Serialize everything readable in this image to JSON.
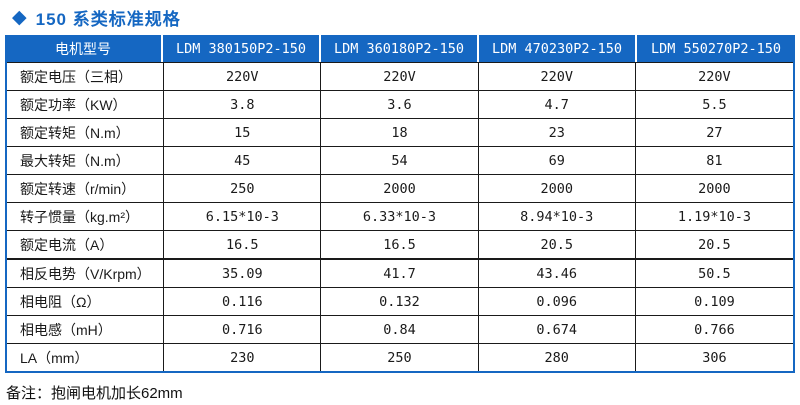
{
  "title": {
    "icon": "diamond",
    "text": "150 系类标准规格"
  },
  "colors": {
    "accent_blue": "#1567C2",
    "header_text": "#FFFFFF",
    "body_text": "#1A1A1A",
    "grid_line": "#1A1A1A"
  },
  "icons": {
    "diamond": "◆"
  },
  "table": {
    "header": [
      "电机型号",
      "LDM 380150P2-150",
      "LDM 360180P2-150",
      "LDM 470230P2-150",
      "LDM 550270P2-150"
    ],
    "rows": [
      {
        "label": "额定电压（三相）",
        "values": [
          "220V",
          "220V",
          "220V",
          "220V"
        ]
      },
      {
        "label": "额定功率（KW）",
        "values": [
          "3.8",
          "3.6",
          "4.7",
          "5.5"
        ]
      },
      {
        "label": "额定转矩（N.m）",
        "values": [
          "15",
          "18",
          "23",
          "27"
        ]
      },
      {
        "label": "最大转矩（N.m）",
        "values": [
          "45",
          "54",
          "69",
          "81"
        ]
      },
      {
        "label": "额定转速（r/min）",
        "values": [
          "250",
          "2000",
          "2000",
          "2000"
        ]
      },
      {
        "label": "转子惯量（kg.m²）",
        "values": [
          "6.15*10-3",
          "6.33*10-3",
          "8.94*10-3",
          "1.19*10-3"
        ]
      },
      {
        "label": "额定电流（A）",
        "values": [
          "16.5",
          "16.5",
          "20.5",
          "20.5"
        ]
      },
      {
        "label": "相反电势（V/Krpm）",
        "values": [
          "35.09",
          "41.7",
          "43.46",
          "50.5"
        ]
      },
      {
        "label": "相电阻（Ω）",
        "values": [
          "0.116",
          "0.132",
          "0.096",
          "0.109"
        ]
      },
      {
        "label": "相电感（mH）",
        "values": [
          "0.716",
          "0.84",
          "0.674",
          "0.766"
        ]
      },
      {
        "label": "LA（mm）",
        "values": [
          "230",
          "250",
          "280",
          "306"
        ]
      }
    ]
  },
  "footer_note": "备注：抱闸电机加长62mm"
}
